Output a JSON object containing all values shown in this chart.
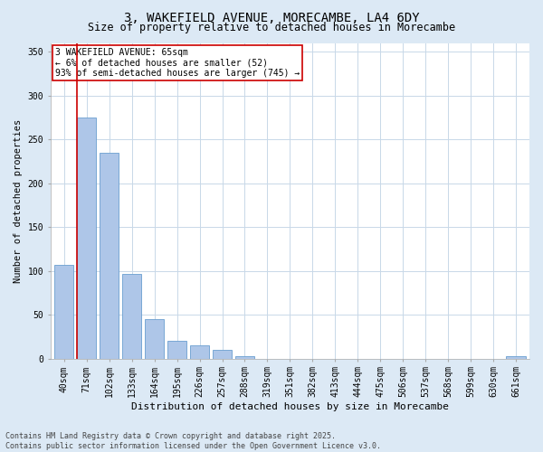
{
  "title_line1": "3, WAKEFIELD AVENUE, MORECAMBE, LA4 6DY",
  "title_line2": "Size of property relative to detached houses in Morecambe",
  "xlabel": "Distribution of detached houses by size in Morecambe",
  "ylabel": "Number of detached properties",
  "categories": [
    "40sqm",
    "71sqm",
    "102sqm",
    "133sqm",
    "164sqm",
    "195sqm",
    "226sqm",
    "257sqm",
    "288sqm",
    "319sqm",
    "351sqm",
    "382sqm",
    "413sqm",
    "444sqm",
    "475sqm",
    "506sqm",
    "537sqm",
    "568sqm",
    "599sqm",
    "630sqm",
    "661sqm"
  ],
  "values": [
    107,
    275,
    235,
    97,
    45,
    20,
    15,
    10,
    3,
    0,
    0,
    0,
    0,
    0,
    0,
    0,
    0,
    0,
    0,
    0,
    3
  ],
  "bar_color": "#aec6e8",
  "bar_edge_color": "#6a9fd0",
  "vline_color": "#cc0000",
  "vline_x_index": 0.57,
  "annotation_text": "3 WAKEFIELD AVENUE: 65sqm\n← 6% of detached houses are smaller (52)\n93% of semi-detached houses are larger (745) →",
  "annotation_box_color": "#ffffff",
  "annotation_box_edge": "#cc0000",
  "fig_bg_color": "#dce9f5",
  "plot_bg_color": "#ffffff",
  "footer_line1": "Contains HM Land Registry data © Crown copyright and database right 2025.",
  "footer_line2": "Contains public sector information licensed under the Open Government Licence v3.0.",
  "ylim": [
    0,
    360
  ],
  "yticks": [
    0,
    50,
    100,
    150,
    200,
    250,
    300,
    350
  ],
  "title1_fontsize": 10,
  "title2_fontsize": 8.5,
  "xlabel_fontsize": 8,
  "ylabel_fontsize": 7.5,
  "tick_fontsize": 7,
  "footer_fontsize": 6,
  "annot_fontsize": 7
}
